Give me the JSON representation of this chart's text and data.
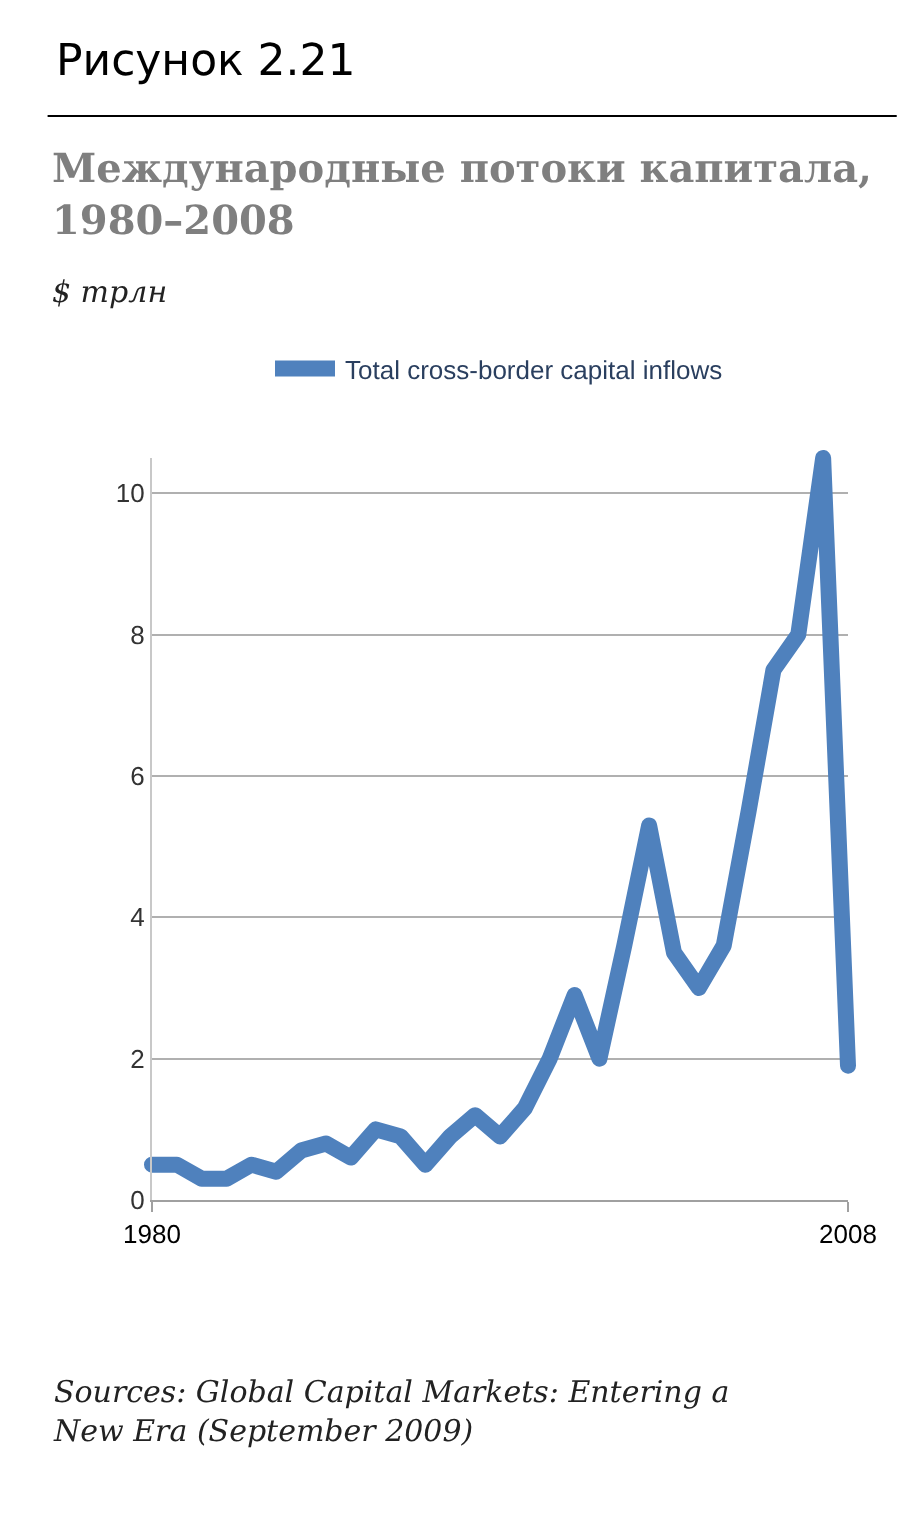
{
  "chart_data": {
    "type": "line",
    "title": "Рисунок 2.21",
    "subtitle": "Международные потоки капитала, 1980–2008",
    "ylabel": "$ трлн",
    "x": [
      1980,
      1981,
      1982,
      1983,
      1984,
      1985,
      1986,
      1987,
      1988,
      1989,
      1990,
      1991,
      1992,
      1993,
      1994,
      1995,
      1996,
      1997,
      1998,
      1999,
      2000,
      2001,
      2002,
      2003,
      2004,
      2005,
      2006,
      2007,
      2008
    ],
    "series": [
      {
        "name": "Total cross-border capital inflows",
        "color": "#4f81bd",
        "values": [
          0.5,
          0.5,
          0.3,
          0.3,
          0.5,
          0.4,
          0.7,
          0.8,
          0.6,
          1.0,
          0.9,
          0.5,
          0.9,
          1.2,
          0.9,
          1.3,
          2.0,
          2.9,
          2.0,
          3.6,
          5.3,
          3.5,
          3.0,
          3.6,
          5.5,
          7.5,
          8.0,
          10.5,
          1.9
        ]
      }
    ],
    "xlim": [
      1980,
      2008
    ],
    "xticks": [
      1980,
      2008
    ],
    "ylim": [
      0,
      10.5
    ],
    "yticks": [
      0,
      2,
      4,
      6,
      8,
      10
    ],
    "grid": "y",
    "legend": "top",
    "marker": "none",
    "line_style": "solid",
    "annotations": [
      "Sources: Global Capital Markets: Entering a New Era (September 2009)"
    ]
  }
}
